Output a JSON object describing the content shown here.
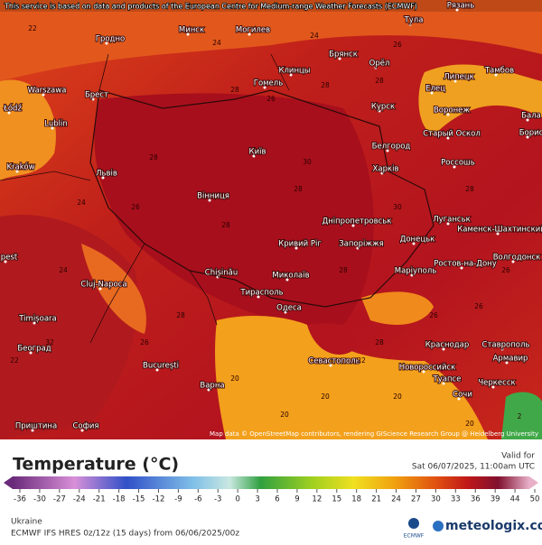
{
  "header": {
    "attribution": "This service is based on data and products of the European Centre for Medium-range Weather Forecasts (ECMWF)"
  },
  "map": {
    "credit": "Map data © OpenStreetMap contributors, rendering GIScience Research Group @ Heidelberg University",
    "cities": [
      "Минск",
      "Могилев",
      "Тула",
      "Рязань",
      "Гродно",
      "Брянск",
      "Орёл",
      "Тамбов",
      "Warszawa",
      "Брест",
      "Гомель",
      "Клинцы",
      "Липецк",
      "Елец",
      "Łódź",
      "Lublin",
      "Курск",
      "Воронеж",
      "Бала",
      "Старый Оскол",
      "Борис",
      "Київ",
      "Белгород",
      "Россошь",
      "Kraków",
      "Львів",
      "Харків",
      "Вінниця",
      "Дніпропетровськ",
      "Луганськ",
      "Каменск-Шахтинский",
      "Кривий Ріг",
      "Запоріжжя",
      "Донецьк",
      "pest",
      "Cluj-Napoca",
      "Chișinău",
      "Миколаїв",
      "Маріуполь",
      "Ростов-на-Дону",
      "Волгодонск",
      "Тирасполь",
      "Одеса",
      "Timișoara",
      "Београд",
      "Краснодар",
      "Ставрополь",
      "Севастополь",
      "Армавир",
      "Новороссийск",
      "București",
      "Туапсе",
      "Сочи",
      "Черкесск",
      "Варна",
      "Приштина",
      "София"
    ],
    "temperatures": [
      22,
      24,
      24,
      26,
      28,
      28,
      28,
      26,
      24,
      28,
      28,
      30,
      28,
      28,
      28,
      26,
      24,
      30,
      28,
      26,
      28,
      32,
      26,
      22,
      20,
      20,
      20,
      20,
      22,
      26,
      26,
      20,
      2
    ]
  },
  "legend": {
    "title": "Temperature (°C)",
    "valid_label": "Valid for",
    "valid_time": "Sat 06/07/2025, 11:00am UTC",
    "ticks": [
      -36,
      -30,
      -27,
      -24,
      -21,
      -18,
      -15,
      -12,
      -9,
      -6,
      -3,
      0,
      3,
      6,
      9,
      12,
      15,
      18,
      21,
      24,
      27,
      30,
      33,
      36,
      39,
      44,
      50
    ]
  },
  "footer": {
    "region": "Ukraine",
    "model": "ECMWF IFS HRES 0z/12z (15 days) from 06/06/2025/00z",
    "logo_left": "ECMWF",
    "logo_right": "meteologix.com"
  }
}
